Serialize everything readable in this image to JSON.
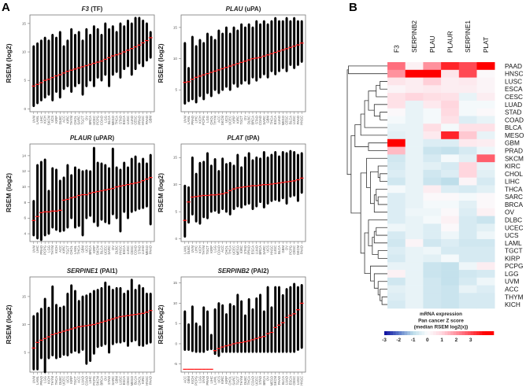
{
  "panel_labels": {
    "a": "A",
    "b": "B"
  },
  "chart_data": [
    {
      "type": "scatter",
      "title_gene": "F3",
      "title_suffix": "(TF)",
      "ylabel": "RSEM (log2)",
      "ylim": [
        -0.5,
        16.5
      ],
      "yticks": [
        0,
        5,
        10,
        15
      ],
      "categories": [
        "UVM",
        "LAML",
        "LIHC",
        "KICH",
        "SKCM",
        "UCS",
        "KIRP",
        "DLBC",
        "ACC",
        "KIRC",
        "THYM",
        "CHOL",
        "SARC",
        "TGCT",
        "OV",
        "BRCA",
        "UCEC",
        "PCPG",
        "COAD",
        "LGG",
        "BLCA",
        "MESO",
        "THCA",
        "STAD",
        "ESCA",
        "LUSC",
        "LUAD",
        "CESC",
        "PRAD",
        "HNSC",
        "PAAD",
        "GBM"
      ],
      "median": [
        4.0,
        4.3,
        4.6,
        5.0,
        5.2,
        5.5,
        5.8,
        6.0,
        6.3,
        6.6,
        6.8,
        7.0,
        7.2,
        7.4,
        7.6,
        7.8,
        8.0,
        8.2,
        8.4,
        8.7,
        9.0,
        9.3,
        9.5,
        9.7,
        10.0,
        10.3,
        10.6,
        10.9,
        11.2,
        11.6,
        12.0,
        12.5
      ],
      "min": [
        0.5,
        1,
        1.5,
        2,
        2.5,
        1.5,
        3,
        2,
        3.5,
        4,
        3,
        4,
        4.5,
        2.5,
        4,
        5,
        4,
        5.5,
        5,
        6,
        4,
        6,
        6.5,
        5.5,
        7,
        7.5,
        6,
        7,
        8,
        7.5,
        8.5,
        9
      ],
      "max": [
        11,
        11.5,
        12,
        12.5,
        12,
        13,
        12.5,
        13.5,
        11,
        12,
        14,
        13,
        13.5,
        12,
        14,
        13,
        14.5,
        14,
        13,
        15,
        14,
        14.5,
        13.5,
        15,
        14.5,
        15.5,
        15,
        16,
        16,
        15.5,
        15,
        13.5
      ]
    },
    {
      "type": "scatter",
      "title_gene": "PLAU",
      "title_suffix": "(uPA)",
      "ylabel": "RSEM (log2)",
      "ylim": [
        1.5,
        17
      ],
      "yticks": [
        5,
        10,
        15
      ],
      "categories": [
        "UVM",
        "LAML",
        "PRAD",
        "LIHC",
        "KICH",
        "PCPG",
        "LGG",
        "CHOL",
        "THYM",
        "ACC",
        "SKCM",
        "UCS",
        "UCEC",
        "KIRP",
        "KIRC",
        "TGCT",
        "OV",
        "DLBC",
        "BRCA",
        "STAD",
        "COAD",
        "SARC",
        "GBM",
        "THCA",
        "ESCA",
        "LUAD",
        "MESO",
        "CESC",
        "BLCA",
        "LUSC",
        "PAAD",
        "HNSC"
      ],
      "median": [
        6.2,
        6.3,
        6.7,
        7.0,
        7.2,
        7.4,
        7.6,
        7.8,
        8.0,
        8.2,
        8.4,
        8.6,
        8.8,
        9.0,
        9.2,
        9.4,
        9.6,
        9.8,
        10.0,
        10.1,
        10.2,
        10.4,
        10.6,
        10.8,
        11.0,
        11.2,
        11.4,
        11.6,
        11.8,
        12.0,
        12.2,
        12.5
      ],
      "min": [
        2.8,
        3.2,
        3.5,
        3,
        4,
        3.5,
        4.5,
        4,
        5,
        4.5,
        5,
        5.5,
        5,
        6,
        5.5,
        6,
        6.5,
        6,
        7,
        6.5,
        7,
        7.5,
        7,
        8,
        7.5,
        8,
        8.5,
        8,
        9,
        8.5,
        9,
        9.5
      ],
      "max": [
        12.5,
        8.5,
        13.5,
        12,
        13,
        12.5,
        14,
        13.5,
        13,
        14.5,
        14,
        15,
        14,
        15,
        14.5,
        15.5,
        15,
        15.5,
        15,
        16,
        15.5,
        16,
        15.5,
        16,
        16.5,
        16,
        16,
        16.5,
        16,
        16.5,
        16,
        16
      ]
    },
    {
      "type": "scatter",
      "title_gene": "PLAUR",
      "title_suffix": "(uPAR)",
      "ylabel": "RSEM (log2)",
      "ylim": [
        3,
        15.5
      ],
      "yticks": [
        4,
        6,
        8,
        10,
        12,
        14
      ],
      "categories": [
        "UVM",
        "LIHC",
        "PRAD",
        "PCPG",
        "LGG",
        "THYM",
        "KICH",
        "ACC",
        "KIRC",
        "TGCT",
        "CHOL",
        "LAML",
        "THCA",
        "GBM",
        "UCS",
        "BRCA",
        "KIRP",
        "SKCM",
        "BLCA",
        "UCEC",
        "SARC",
        "OV",
        "DLBC",
        "HNSC",
        "ESCA",
        "LUSC",
        "CESC",
        "COAD",
        "STAD",
        "LUAD",
        "MESO",
        "PAAD"
      ],
      "median": [
        5.7,
        6.2,
        6.7,
        6.8,
        6.8,
        6.9,
        6.9,
        7.0,
        8.3,
        8.4,
        8.6,
        8.7,
        8.9,
        9.0,
        9.0,
        9.2,
        9.3,
        9.4,
        9.5,
        9.6,
        9.7,
        9.8,
        10.0,
        10.1,
        10.2,
        10.3,
        10.4,
        10.5,
        10.6,
        10.8,
        11.0,
        11.2
      ],
      "min": [
        3.8,
        3.4,
        3.2,
        3.8,
        4,
        4.8,
        4.5,
        4.3,
        4.4,
        4.8,
        6,
        4.8,
        5,
        3.8,
        6,
        6.3,
        5.5,
        5,
        5.8,
        5.5,
        5.3,
        6.5,
        6,
        4.3,
        6.8,
        6,
        6.8,
        7,
        7.2,
        7.3,
        7.5,
        5.2
      ],
      "max": [
        8.2,
        12.8,
        13.2,
        13.5,
        9.5,
        12.4,
        12.2,
        10.8,
        11.2,
        12.8,
        11.5,
        12.5,
        12.2,
        12,
        12.1,
        12,
        15,
        13.1,
        13,
        12.8,
        12.4,
        14.9,
        12.5,
        12.2,
        13.1,
        12.5,
        13.6,
        13.9,
        13,
        13.6,
        13,
        14.1
      ]
    },
    {
      "type": "scatter",
      "title_gene": "PLAT",
      "title_suffix": "(tPA)",
      "ylabel": "RSEM (log2)",
      "ylim": [
        -0.5,
        17.5
      ],
      "yticks": [
        0,
        5,
        10,
        15
      ],
      "categories": [
        "LAML",
        "DLBC",
        "UVM",
        "LIHC",
        "KICH",
        "THYM",
        "TGCT",
        "KIRP",
        "LGG",
        "COAD",
        "ACC",
        "CHOL",
        "THCA",
        "UCEC",
        "MESO",
        "KIRC",
        "STAD",
        "PRAD",
        "ESCA",
        "LUAD",
        "BRCA",
        "SARC",
        "UCS",
        "HNSC",
        "LUSC",
        "BLCA",
        "GBM",
        "OV",
        "PCPG",
        "CESC",
        "SKCM",
        "PAAD"
      ],
      "median": [
        3.4,
        6.8,
        7.7,
        7.8,
        7.9,
        8.0,
        8.0,
        8.1,
        8.1,
        8.2,
        8.3,
        8.5,
        8.9,
        9.2,
        9.4,
        9.5,
        9.6,
        9.7,
        9.8,
        9.8,
        9.9,
        10.0,
        10.0,
        10.1,
        10.2,
        10.3,
        10.4,
        10.5,
        10.6,
        10.7,
        10.9,
        11.2
      ],
      "min": [
        0.4,
        3,
        4.5,
        3.2,
        2.8,
        4,
        3.8,
        5,
        5.2,
        4.8,
        5.5,
        5,
        4.5,
        5.5,
        6,
        5.8,
        6.3,
        6.5,
        5.5,
        6,
        6.8,
        5.8,
        6.5,
        7,
        7.2,
        7,
        7.5,
        6.5,
        7.8,
        8,
        7,
        8.5
      ],
      "max": [
        9.8,
        9.5,
        15,
        12,
        14,
        14.2,
        15.8,
        13.5,
        14.7,
        12.5,
        14.8,
        13.8,
        14,
        13.5,
        15.5,
        13.2,
        15,
        15.8,
        14.5,
        15,
        14.8,
        16,
        15,
        15.5,
        16,
        15.2,
        16,
        15.8,
        16.2,
        16,
        15.5,
        15.8
      ]
    },
    {
      "type": "scatter",
      "title_gene": "SERPINE1",
      "title_suffix": "(PAI1)",
      "ylabel": "RSEM (log2)",
      "ylim": [
        1.5,
        18.5
      ],
      "yticks": [
        5,
        10,
        15
      ],
      "categories": [
        "UVM",
        "LAML",
        "PRAD",
        "LGG",
        "KICH",
        "THYM",
        "THCA",
        "DLBC",
        "UCEC",
        "UCS",
        "KIRP",
        "TGCT",
        "ACC",
        "LUAD",
        "COAD",
        "LIHC",
        "PCPG",
        "SKCM",
        "BRCA",
        "OV",
        "STAD",
        "SARC",
        "GBM",
        "LUSC",
        "ESCA",
        "CESC",
        "MESO",
        "BLCA",
        "CHOL",
        "KIRC",
        "HNSC",
        "PAAD"
      ],
      "median": [
        5.8,
        6.8,
        7.2,
        7.5,
        7.8,
        8.2,
        8.4,
        8.6,
        8.8,
        9.0,
        9.2,
        9.4,
        9.6,
        9.7,
        9.8,
        9.9,
        10.0,
        10.2,
        10.4,
        10.6,
        10.8,
        11.0,
        11.2,
        11.4,
        11.5,
        11.6,
        11.7,
        11.8,
        11.9,
        12.0,
        12.2,
        12.5
      ],
      "min": [
        2,
        2,
        4,
        1.5,
        4,
        4.5,
        4,
        4.2,
        4.6,
        4.5,
        5,
        5.3,
        5,
        5.5,
        3,
        3.5,
        4.8,
        6,
        6.2,
        6.5,
        5,
        6.5,
        6.8,
        6.8,
        7,
        6.2,
        7,
        7.2,
        6.3,
        6.2,
        6.6,
        6.8
      ],
      "max": [
        11.5,
        12,
        12.8,
        14.6,
        13,
        16.8,
        13.5,
        13,
        13.2,
        15.5,
        17,
        16,
        14.2,
        15,
        15.2,
        15.5,
        16,
        16.2,
        16.5,
        17.5,
        16.8,
        16.2,
        16.5,
        16.5,
        15.5,
        16,
        18,
        16.2,
        17,
        16.5,
        15.5,
        15.5
      ]
    },
    {
      "type": "scatter",
      "title_gene": "SERPINB2",
      "title_suffix": "(PAI2)",
      "ylabel": "RSEM (log2)",
      "ylim": [
        -7,
        16.5
      ],
      "yticks": [
        -5,
        0,
        5,
        10,
        15
      ],
      "categories": [
        "ACC",
        "GBM",
        "KICH",
        "PCPG",
        "LGG",
        "UVM",
        "PRAD",
        "LIHC",
        "LAML",
        "UCS",
        "KIRC",
        "KIRP",
        "CHOL",
        "SARC",
        "TGCT",
        "THYM",
        "DLBC",
        "THCA",
        "COAD",
        "UCEC",
        "STAD",
        "BRCA",
        "OV",
        "MESO",
        "SKCM",
        "PAAD",
        "BLCA",
        "LUAD",
        "ESCA",
        "CESC",
        "LUSC",
        "HNSC"
      ],
      "median": [
        -6.3,
        -6.3,
        -6.3,
        -6.3,
        -6.3,
        -6.3,
        -6.3,
        -6.3,
        -1.7,
        -1.2,
        -0.8,
        -0.5,
        -0.3,
        0,
        0.2,
        0.3,
        0.5,
        0.7,
        1.0,
        1.3,
        1.6,
        1.8,
        2.5,
        2.8,
        4.0,
        4.6,
        5.2,
        6.5,
        7.0,
        7.4,
        8.4,
        10.0
      ],
      "min": [
        -1.5,
        -1.5,
        -1.8,
        -2,
        -2,
        -2,
        -1.5,
        -1.3,
        -2.5,
        -3,
        -2,
        -2,
        -2,
        -2,
        -2,
        -2,
        -2,
        -2,
        -2,
        -2,
        -2,
        -2,
        -2,
        -2,
        -2,
        -2,
        -2,
        -2,
        -2,
        -2,
        -1.5,
        -1
      ],
      "max": [
        8,
        4.8,
        9.2,
        5,
        4.3,
        9,
        8,
        2.2,
        8.5,
        10,
        9.5,
        7.3,
        9.8,
        9.3,
        12.1,
        10.5,
        7,
        11,
        8.5,
        11.2,
        12.1,
        8,
        14,
        9,
        14,
        14,
        12,
        13.5,
        14,
        14.8,
        14,
        14.5
      ]
    },
    {
      "type": "heatmap",
      "columns": [
        "F3",
        "SERPINB2",
        "PLAU",
        "PLAUR",
        "SERPINE1",
        "PLAT"
      ],
      "rows": [
        "PAAD",
        "HNSC",
        "LUSC",
        "ESCA",
        "CESC",
        "LUAD",
        "STAD",
        "COAD",
        "BLCA",
        "MESO",
        "GBM",
        "PRAD",
        "SKCM",
        "KIRC",
        "CHOL",
        "LIHC",
        "THCA",
        "SARC",
        "BRCA",
        "OV",
        "DLBC",
        "UCEC",
        "UCS",
        "LAML",
        "TGCT",
        "KIRP",
        "PCPG",
        "LGG",
        "UVM",
        "ACC",
        "THYM",
        "KICH"
      ],
      "values": [
        [
          2.5,
          0.3,
          2,
          3.5,
          3,
          4
        ],
        [
          2,
          4,
          4,
          0.6,
          3,
          0.1
        ],
        [
          0.6,
          0.4,
          1.1,
          0.4,
          0.5,
          0.2
        ],
        [
          0.2,
          0.4,
          0.5,
          0.4,
          0.4,
          0.2
        ],
        [
          0.7,
          1,
          0.8,
          0.7,
          -0.3,
          0.4
        ],
        [
          0.7,
          -0.3,
          0.5,
          1,
          -0.1,
          -0.1
        ],
        [
          0.1,
          -0.3,
          -0.1,
          0.9,
          -0.1,
          0.1
        ],
        [
          -0.1,
          -0.3,
          -0.1,
          0.7,
          -0.5,
          -0.3
        ],
        [
          -0.3,
          -0.3,
          0.8,
          -0.1,
          0.7,
          0.7
        ],
        [
          -0.4,
          -0.3,
          0.5,
          3.5,
          1.2,
          -0.3
        ],
        [
          4,
          -0.3,
          -0.5,
          -0.5,
          0.5,
          0.4
        ],
        [
          1.4,
          -0.3,
          -0.8,
          -0.9,
          -0.6,
          -0.2
        ],
        [
          -0.7,
          -0.3,
          -0.6,
          -0.1,
          -0.4,
          2.7
        ],
        [
          -0.6,
          -0.3,
          -0.4,
          -0.6,
          1,
          -0.3
        ],
        [
          -0.5,
          -0.3,
          -0.7,
          -0.5,
          1,
          -0.4
        ],
        [
          -0.7,
          -0.3,
          -0.8,
          -1,
          0.2,
          -0.6
        ],
        [
          -0.1,
          -0.3,
          0.4,
          -0.5,
          -0.6,
          -0.4
        ],
        [
          -0.5,
          -0.3,
          0.1,
          0.1,
          -0.1,
          0.1
        ],
        [
          -0.5,
          -0.3,
          -0.1,
          -0.1,
          -0.4,
          0.1
        ],
        [
          -0.5,
          -0.2,
          -0.2,
          0.1,
          -0.5,
          0.3
        ],
        [
          -0.5,
          -0.3,
          -0.1,
          0.3,
          -0.6,
          -0.8
        ],
        [
          -0.2,
          -0.3,
          -0.5,
          0.1,
          -0.6,
          -0.4
        ],
        [
          -0.6,
          -0.3,
          -0.5,
          -0.2,
          -0.6,
          -0.2
        ],
        [
          -0.7,
          0.2,
          -0.7,
          -0.5,
          -0.7,
          -0.7
        ],
        [
          -0.5,
          -0.3,
          -0.2,
          -0.6,
          -0.6,
          -0.6
        ],
        [
          -0.6,
          -0.3,
          -0.4,
          -0.1,
          -0.6,
          -0.6
        ],
        [
          -0.3,
          -0.3,
          -0.8,
          -0.9,
          -0.2,
          0.4
        ],
        [
          0.3,
          -0.3,
          -0.8,
          -0.9,
          -0.7,
          -0.6
        ],
        [
          -0.7,
          -0.3,
          -0.7,
          -0.9,
          -0.6,
          -0.2
        ],
        [
          -0.4,
          -0.3,
          -0.7,
          -0.8,
          -0.3,
          -0.5
        ],
        [
          -0.5,
          -0.3,
          -0.7,
          -0.8,
          -0.6,
          -0.6
        ],
        [
          -0.6,
          -0.3,
          -0.7,
          -0.8,
          -0.6,
          -0.6
        ]
      ],
      "legend_title": [
        "mRNA expression",
        "Pan cancer Z score",
        "(median RSEM log2(x))"
      ],
      "colorbar_range": [
        -3,
        4.6
      ],
      "colorbar_ticks": [
        "-3",
        "-2",
        "-1",
        "0",
        "1",
        "2",
        "3"
      ],
      "colors": {
        "low": "#0a0a9e",
        "mid": "#ffffff",
        "high": "#ff0000",
        "median_line": "#ff0000",
        "points": "#000000"
      }
    }
  ]
}
